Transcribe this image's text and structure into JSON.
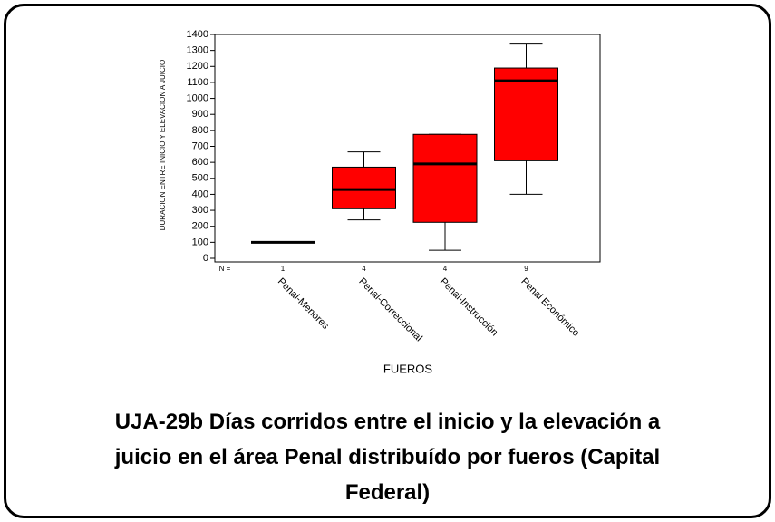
{
  "chart_data": {
    "type": "box",
    "title": "UJA-29b Días corridos entre el inicio y la elevación a juicio en el área Penal distribuído por fueros (Capital Federal)",
    "x_label": "FUEROS",
    "y_label": "DURACION ENTRE INICIO Y ELEVACION A JUICIO",
    "n_label": "N =",
    "categories": [
      "Penal-Menores",
      "Penal-Correccional",
      "Penal-Instrucción",
      "Penal Económico"
    ],
    "n": [
      1,
      4,
      4,
      9
    ],
    "boxes": [
      {
        "min": 100,
        "q1": 100,
        "median": 100,
        "q3": 100,
        "max": 100
      },
      {
        "min": 240,
        "q1": 310,
        "median": 430,
        "q3": 570,
        "max": 665
      },
      {
        "min": 50,
        "q1": 225,
        "median": 590,
        "q3": 775,
        "max": 775
      },
      {
        "min": 400,
        "q1": 610,
        "median": 1110,
        "q3": 1190,
        "max": 1340
      }
    ],
    "color": "#ff0000",
    "ylim": [
      0,
      1400
    ],
    "yticks": [
      0,
      100,
      200,
      300,
      400,
      500,
      600,
      700,
      800,
      900,
      1000,
      1100,
      1200,
      1300,
      1400
    ]
  }
}
